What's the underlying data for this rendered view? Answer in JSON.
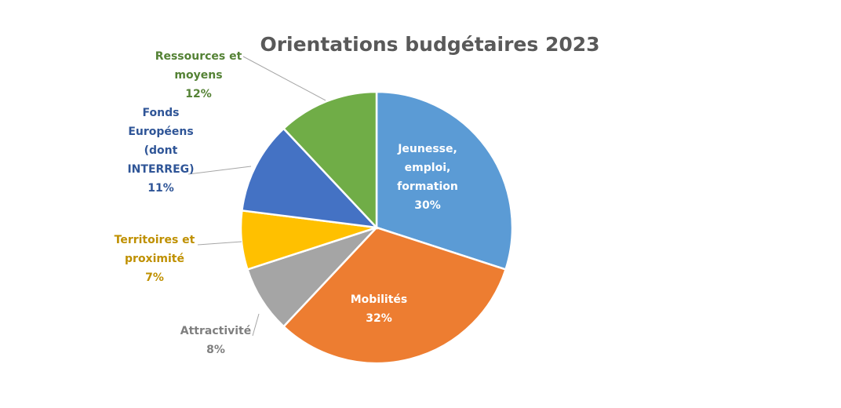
{
  "chart_data": {
    "type": "pie",
    "title": "Orientations budgétaires 2023",
    "categories": [
      "Jeunesse, emploi, formation",
      "Mobilités",
      "Attractivité",
      "Territoires et proximité",
      "Fonds Européens (dont INTERREG)",
      "Ressources et moyens"
    ],
    "values": [
      30,
      32,
      8,
      7,
      11,
      12
    ],
    "value_labels": [
      "30%",
      "32%",
      "8%",
      "7%",
      "11%",
      "12%"
    ],
    "colors": [
      "#5b9bd5",
      "#ed7d31",
      "#a5a5a5",
      "#ffc000",
      "#4472c4",
      "#70ad47"
    ]
  }
}
